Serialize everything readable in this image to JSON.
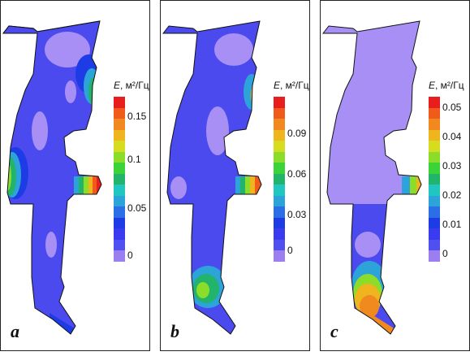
{
  "colorbar_title": {
    "symbol": "E",
    "unit": ", м²/Гц"
  },
  "panels": [
    {
      "id": "a",
      "label": "a",
      "ticks": [
        "0.15",
        "0.1",
        "0.05",
        "0"
      ]
    },
    {
      "id": "b",
      "label": "b",
      "ticks": [
        "0.09",
        "0.06",
        "0.03",
        "0"
      ]
    },
    {
      "id": "c",
      "label": "c",
      "ticks": [
        "0.05",
        "0.04",
        "0.03",
        "0.02",
        "0.01",
        "0"
      ]
    }
  ],
  "colors": {
    "scale": [
      "#9b7ef0",
      "#5050f0",
      "#3a3af0",
      "#1e3ce6",
      "#2b6fe6",
      "#2ca3d9",
      "#20c6c2",
      "#22b46a",
      "#3cd23a",
      "#8cdc2a",
      "#d6dc1e",
      "#f0b41e",
      "#f08a1e",
      "#f05a1a",
      "#e81e1e"
    ],
    "base": "#4a4aee",
    "pale": "#a88ff5"
  }
}
